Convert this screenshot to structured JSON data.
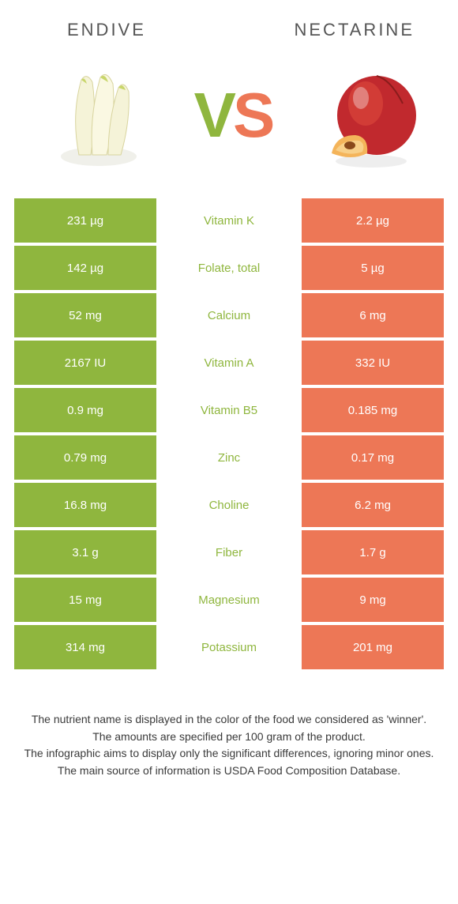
{
  "headers": {
    "left": "ENDIVE",
    "right": "NECTARINE"
  },
  "vs": {
    "v": "V",
    "s": "S"
  },
  "colors": {
    "green": "#8fb63e",
    "orange": "#ed7756",
    "header_text": "#555555",
    "footer_text": "#3a3a3a",
    "background": "#ffffff"
  },
  "rows": [
    {
      "left": "231 µg",
      "label": "Vitamin K",
      "right": "2.2 µg",
      "winner": "green"
    },
    {
      "left": "142 µg",
      "label": "Folate, total",
      "right": "5 µg",
      "winner": "green"
    },
    {
      "left": "52 mg",
      "label": "Calcium",
      "right": "6 mg",
      "winner": "green"
    },
    {
      "left": "2167 IU",
      "label": "Vitamin A",
      "right": "332 IU",
      "winner": "green"
    },
    {
      "left": "0.9 mg",
      "label": "Vitamin B5",
      "right": "0.185 mg",
      "winner": "green"
    },
    {
      "left": "0.79 mg",
      "label": "Zinc",
      "right": "0.17 mg",
      "winner": "green"
    },
    {
      "left": "16.8 mg",
      "label": "Choline",
      "right": "6.2 mg",
      "winner": "green"
    },
    {
      "left": "3.1 g",
      "label": "Fiber",
      "right": "1.7 g",
      "winner": "green"
    },
    {
      "left": "15 mg",
      "label": "Magnesium",
      "right": "9 mg",
      "winner": "green"
    },
    {
      "left": "314 mg",
      "label": "Potassium",
      "right": "201 mg",
      "winner": "green"
    }
  ],
  "footer": [
    "The nutrient name is displayed in the color of the food we considered as 'winner'.",
    "The amounts are specified per 100 gram of the product.",
    "The infographic aims to display only the significant differences, ignoring minor ones.",
    "The main source of information is USDA Food Composition Database."
  ]
}
